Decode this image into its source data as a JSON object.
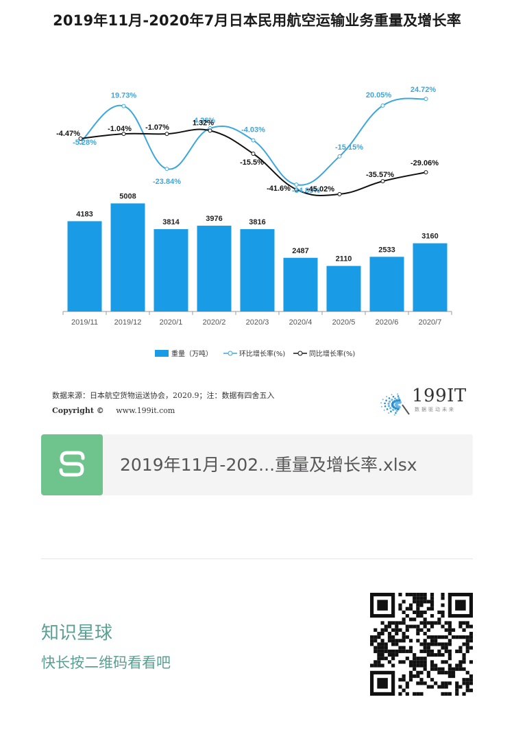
{
  "title": "2019年11月-2020年7月日本民用航空运输业务重量及增长率",
  "chart_data": {
    "type": "bar",
    "categories": [
      "2019/11",
      "2019/12",
      "2020/1",
      "2020/2",
      "2020/3",
      "2020/4",
      "2020/5",
      "2020/6",
      "2020/7"
    ],
    "series": [
      {
        "name": "重量（万吨）",
        "type": "bar",
        "values": [
          4183,
          5008,
          3814,
          3976,
          3816,
          2487,
          2110,
          2533,
          3160
        ],
        "labels": [
          "4183",
          "5008",
          "3814",
          "3976",
          "3816",
          "2487",
          "2110",
          "2533",
          "3160"
        ]
      },
      {
        "name": "环比增长率(%)",
        "type": "line",
        "values": [
          -5.28,
          19.73,
          -23.84,
          4.26,
          -4.03,
          -34.83,
          -15.15,
          20.05,
          24.72
        ],
        "labels": [
          "-5.28%",
          "19.73%",
          "-23.84%",
          "4.26%",
          "-4.03%",
          "-34.83%",
          "-15.15%",
          "20.05%",
          "24.72%"
        ]
      },
      {
        "name": "同比增长率(%)",
        "type": "line",
        "values": [
          -4.47,
          -1.04,
          -1.07,
          1.32,
          -15.5,
          -41.6,
          -45.02,
          -35.57,
          -29.06
        ],
        "labels": [
          "-4.47%",
          "-1.04%",
          "-1.07%",
          "1.32%",
          "-15.5%",
          "-41.6%",
          "-45.02%",
          "-35.57%",
          "-29.06%"
        ]
      }
    ],
    "grid": false,
    "legend_position": "bottom"
  },
  "colors": {
    "bar": "#1a9be6",
    "mom_line": "#3aa6e0",
    "yoy_line": "#111111"
  },
  "source": {
    "text": "数据来源：日本航空货物运送协会，2020.9；注：数据有四舍五入",
    "copyright_label": "Copyright ©",
    "site": "www.199it.com"
  },
  "logo": {
    "name": "199IT",
    "tagline": "数据驱动未来"
  },
  "attachment": {
    "icon": "spreadsheet-icon",
    "file_name": "2019年11月-202...重量及增长率.xlsx"
  },
  "footer": {
    "title": "知识星球",
    "subtitle": "快长按二维码看看吧"
  }
}
